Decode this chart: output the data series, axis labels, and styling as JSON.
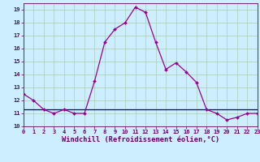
{
  "x": [
    0,
    1,
    2,
    3,
    4,
    5,
    6,
    7,
    8,
    9,
    10,
    11,
    12,
    13,
    14,
    15,
    16,
    17,
    18,
    19,
    20,
    21,
    22,
    23
  ],
  "y_main": [
    12.5,
    12.0,
    11.3,
    11.0,
    11.3,
    11.0,
    11.0,
    13.5,
    16.5,
    17.5,
    18.0,
    19.2,
    18.8,
    16.5,
    14.4,
    14.9,
    14.2,
    13.4,
    11.3,
    11.0,
    10.5,
    10.7,
    11.0,
    11.0
  ],
  "y_flat": [
    11.3,
    11.3,
    11.3,
    11.3,
    11.3,
    11.3,
    11.3,
    11.3,
    11.3,
    11.3,
    11.3,
    11.3,
    11.3,
    11.3,
    11.3,
    11.3,
    11.3,
    11.3,
    11.3,
    11.3,
    11.3,
    11.3,
    11.3,
    11.3
  ],
  "line_color": "#990099",
  "flat_color": "#000099",
  "bg_color": "#cceeff",
  "grid_color": "#aaccbb",
  "xlabel": "Windchill (Refroidissement éolien,°C)",
  "xlim": [
    0,
    23
  ],
  "ylim": [
    10,
    19.5
  ],
  "yticks": [
    10,
    11,
    12,
    13,
    14,
    15,
    16,
    17,
    18,
    19
  ],
  "xticks": [
    0,
    1,
    2,
    3,
    4,
    5,
    6,
    7,
    8,
    9,
    10,
    11,
    12,
    13,
    14,
    15,
    16,
    17,
    18,
    19,
    20,
    21,
    22,
    23
  ],
  "tick_fontsize": 5.0,
  "xlabel_fontsize": 6.2,
  "markersize": 2.0,
  "linewidth": 0.9
}
